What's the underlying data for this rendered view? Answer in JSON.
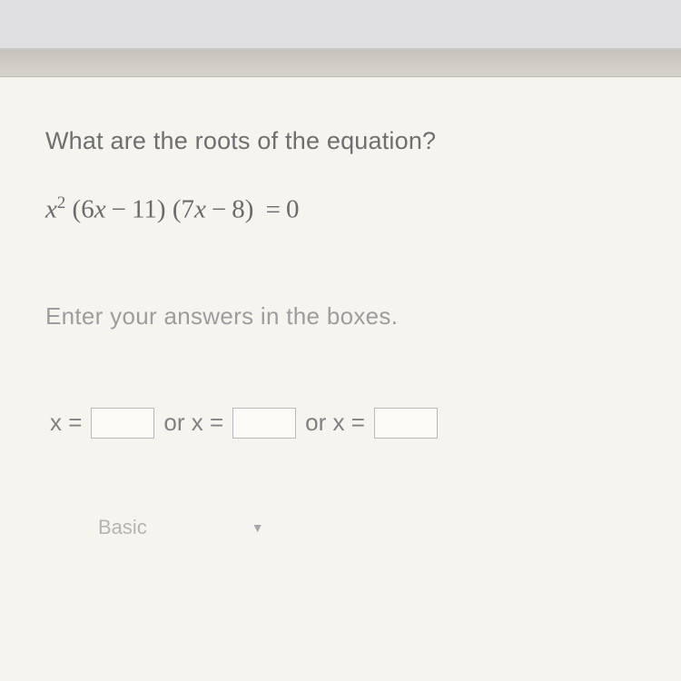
{
  "colors": {
    "top_bar": "#e0dfe2",
    "divider": "#c5c3bc",
    "content_bg": "#f6f4ee",
    "question_text": "#6f6f6f",
    "equation_text": "#6b6b6b",
    "instruction_text": "#9d9d9d",
    "answer_text": "#808080",
    "box_border": "#b9b9b9",
    "basic_text": "#b4b4b4"
  },
  "question": "What are the roots of the equation?",
  "equation": {
    "display": "x² (6x − 11) (7x − 8) = 0",
    "var": "x",
    "exp": "2",
    "factor1_a": "6",
    "factor1_b": "11",
    "factor2_a": "7",
    "factor2_b": "8",
    "rhs": "0"
  },
  "instruction": "Enter your answers in the boxes.",
  "answers": {
    "prefix1": "x =",
    "sep": "or x =",
    "values": [
      "",
      "",
      ""
    ]
  },
  "dropdown": {
    "label": "Basic"
  }
}
